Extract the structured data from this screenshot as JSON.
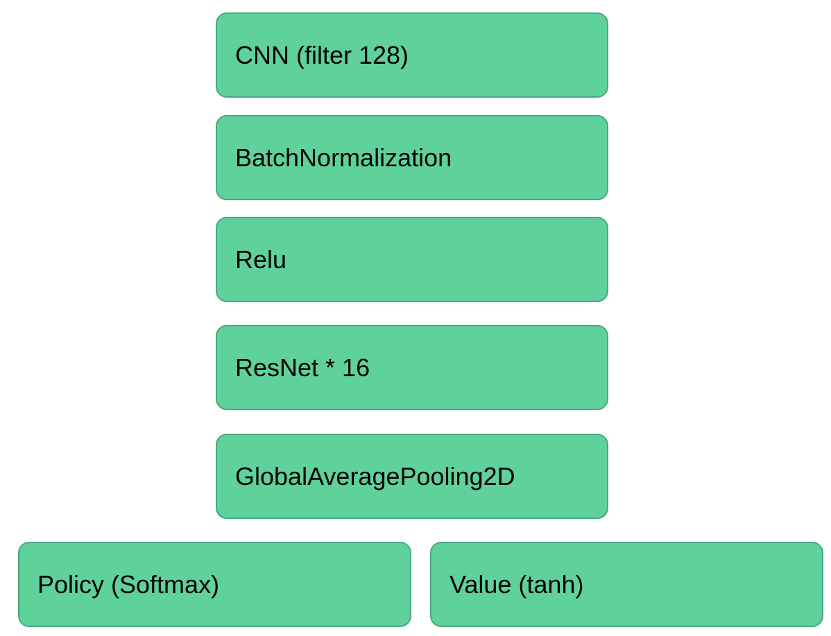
{
  "layers": {
    "cnn": "CNN (filter 128)",
    "batch_norm": "BatchNormalization",
    "relu": "Relu",
    "resnet": "ResNet * 16",
    "global_pool": "GlobalAveragePooling2D"
  },
  "heads": {
    "policy": "Policy (Softmax)",
    "value": "Value (tanh)"
  },
  "colors": {
    "block_fill": "#5fd19b",
    "block_border": "#4aa87b",
    "text": "#000000",
    "background": "#ffffff"
  }
}
